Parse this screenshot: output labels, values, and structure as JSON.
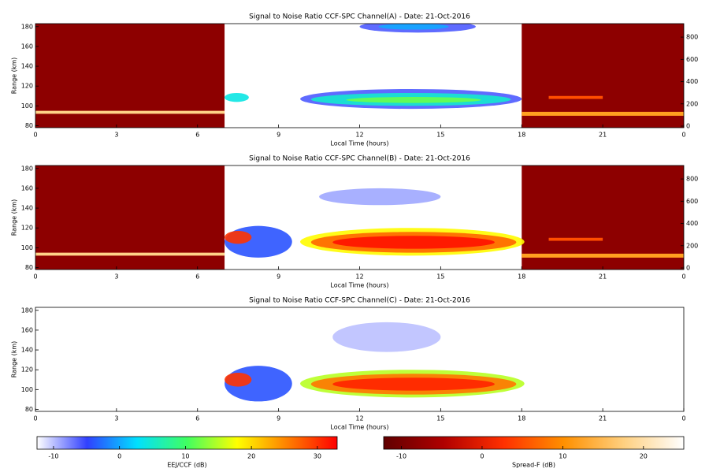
{
  "chart_data": [
    {
      "type": "heatmap",
      "title": "Signal to Noise Ratio CCF-SPC Channel(A) - Date: 21-Oct-2016",
      "xlabel": "Local Time (hours)",
      "ylabel": "Range (km)",
      "xlim": [
        0,
        24
      ],
      "xticks": [
        0,
        3,
        6,
        9,
        12,
        15,
        18,
        21,
        {
          "value": 24,
          "label": "0"
        }
      ],
      "ylim": [
        78,
        183
      ],
      "yticks": [
        80,
        100,
        120,
        140,
        160,
        180
      ],
      "y2lim": [
        -14,
        921
      ],
      "y2ticks": [
        0,
        200,
        400,
        600,
        800
      ],
      "spread_f": [
        {
          "start": 0,
          "end": 7,
          "bottom": 78,
          "top": 183,
          "snr": -8
        },
        {
          "start": 18,
          "end": 24,
          "bottom": 78,
          "top": 183,
          "snr": -8
        },
        {
          "start": 0,
          "end": 7,
          "bottom": 92,
          "top": 95,
          "snr": 18
        },
        {
          "start": 18,
          "end": 24,
          "bottom": 90,
          "top": 94,
          "snr": 12
        },
        {
          "start": 19,
          "end": 21,
          "bottom": 107,
          "top": 110,
          "snr": 5
        }
      ],
      "regions": [
        {
          "start": 12,
          "end": 16.3,
          "bottom": 174,
          "top": 186,
          "snr": -6
        },
        {
          "start": 12.7,
          "end": 15.3,
          "bottom": 177,
          "top": 183,
          "snr": 0
        },
        {
          "start": 9.8,
          "end": 18,
          "bottom": 97,
          "top": 117,
          "snr": -6
        },
        {
          "start": 10.2,
          "end": 17.6,
          "bottom": 100,
          "top": 113,
          "snr": 5
        },
        {
          "start": 11.5,
          "end": 16.5,
          "bottom": 103,
          "top": 109,
          "snr": 12
        },
        {
          "start": 7,
          "end": 7.9,
          "bottom": 104,
          "top": 113,
          "snr": 4
        }
      ]
    },
    {
      "type": "heatmap",
      "title": "Signal to Noise Ratio CCF-SPC Channel(B) - Date: 21-Oct-2016",
      "xlabel": "Local Time (hours)",
      "ylabel": "Range (km)",
      "xlim": [
        0,
        24
      ],
      "xticks": [
        0,
        3,
        6,
        9,
        12,
        15,
        18,
        21,
        {
          "value": 24,
          "label": "0"
        }
      ],
      "ylim": [
        78,
        183
      ],
      "yticks": [
        80,
        100,
        120,
        140,
        160,
        180
      ],
      "y2lim": [
        -14,
        921
      ],
      "y2ticks": [
        0,
        200,
        400,
        600,
        800
      ],
      "spread_f": [
        {
          "start": 0,
          "end": 7,
          "bottom": 78,
          "top": 183,
          "snr": -8
        },
        {
          "start": 18,
          "end": 24,
          "bottom": 78,
          "top": 183,
          "snr": -8
        },
        {
          "start": 0,
          "end": 7,
          "bottom": 92,
          "top": 95,
          "snr": 18
        },
        {
          "start": 18,
          "end": 24,
          "bottom": 90,
          "top": 94,
          "snr": 12
        },
        {
          "start": 19,
          "end": 21,
          "bottom": 107,
          "top": 110,
          "snr": 5
        }
      ],
      "regions": [
        {
          "start": 10.5,
          "end": 15,
          "bottom": 143,
          "top": 160,
          "snr": -9
        },
        {
          "start": 7,
          "end": 9.5,
          "bottom": 90,
          "top": 122,
          "snr": -4
        },
        {
          "start": 7,
          "end": 8,
          "bottom": 104,
          "top": 117,
          "snr": 30
        },
        {
          "start": 9.8,
          "end": 18.1,
          "bottom": 92,
          "top": 120,
          "snr": 18
        },
        {
          "start": 10.2,
          "end": 17.8,
          "bottom": 95,
          "top": 116,
          "snr": 27
        },
        {
          "start": 11,
          "end": 17,
          "bottom": 99,
          "top": 112,
          "snr": 32
        }
      ]
    },
    {
      "type": "heatmap",
      "title": "Signal to Noise Ratio CCF-SPC Channel(C) - Date: 21-Oct-2016",
      "xlabel": "Local Time (hours)",
      "ylabel": "Range (km)",
      "xlim": [
        0,
        24
      ],
      "xticks": [
        0,
        3,
        6,
        9,
        12,
        15,
        18,
        21,
        {
          "value": 24,
          "label": "0"
        }
      ],
      "ylim": [
        78,
        183
      ],
      "yticks": [
        80,
        100,
        120,
        140,
        160,
        180
      ],
      "spread_f": [],
      "regions": [
        {
          "start": 11,
          "end": 15,
          "bottom": 138,
          "top": 168,
          "snr": -10
        },
        {
          "start": 7,
          "end": 9.5,
          "bottom": 88,
          "top": 124,
          "snr": -4
        },
        {
          "start": 7,
          "end": 8,
          "bottom": 103,
          "top": 117,
          "snr": 30
        },
        {
          "start": 9.8,
          "end": 18.1,
          "bottom": 92,
          "top": 120,
          "snr": 15
        },
        {
          "start": 10.2,
          "end": 17.8,
          "bottom": 95,
          "top": 116,
          "snr": 26
        },
        {
          "start": 11,
          "end": 17,
          "bottom": 99,
          "top": 112,
          "snr": 31
        }
      ]
    }
  ],
  "colorbars": [
    {
      "label": "EEJ/CCF (dB)",
      "clim": [
        -12.5,
        33
      ],
      "ticks": [
        -10,
        0,
        10,
        20,
        30
      ],
      "colors": [
        "#ffffff",
        "#3040ff",
        "#00e0ff",
        "#40ff60",
        "#ffff00",
        "#ff8000",
        "#ff0000"
      ]
    },
    {
      "label": "Spread-F (dB)",
      "clim": [
        -12.2,
        25
      ],
      "ticks": [
        -10,
        0,
        10,
        20
      ],
      "colors": [
        "#600000",
        "#b00000",
        "#ff3000",
        "#ff9000",
        "#ffd080",
        "#ffffff"
      ]
    }
  ]
}
